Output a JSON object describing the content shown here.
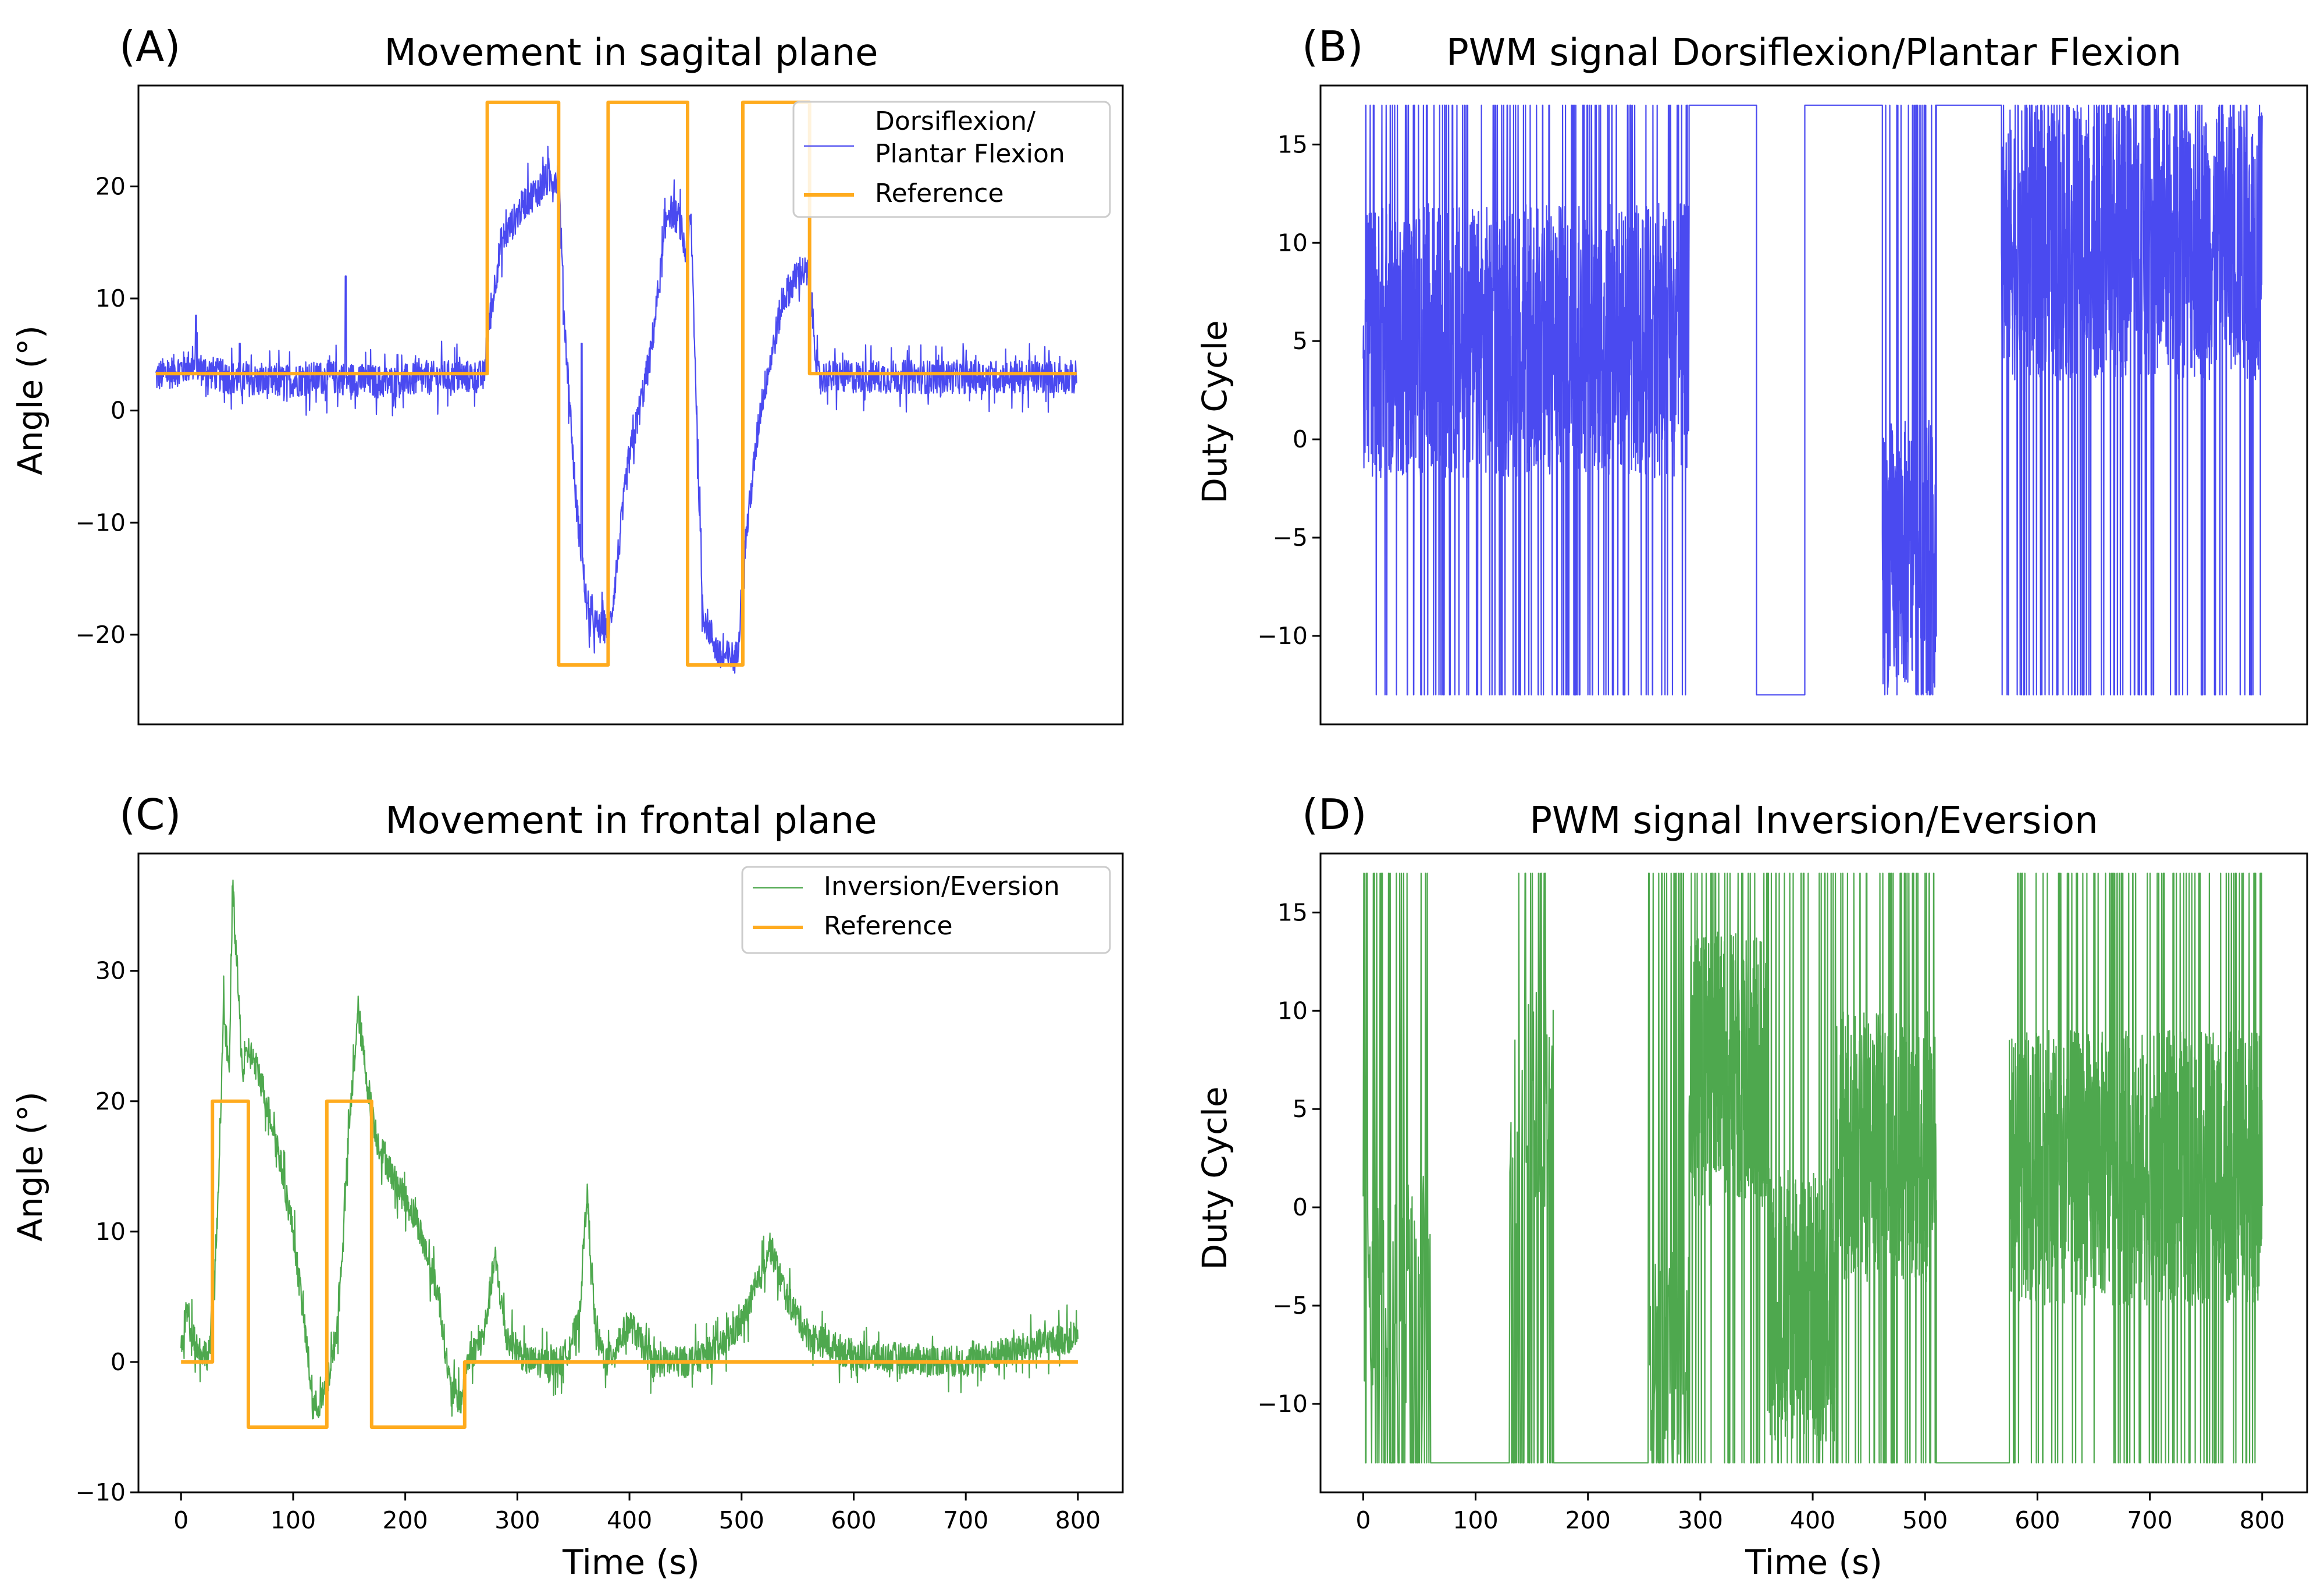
{
  "colors": {
    "blue": "#4a4af0",
    "orange": "#ffab1e",
    "green": "#4ea84e"
  },
  "chart_data": [
    {
      "id": "A",
      "type": "line",
      "panel_label": "(A)",
      "title": "Movement in sagital plane",
      "xlabel": "",
      "ylabel": "Angle (°)",
      "xlim": [
        -15,
        840
      ],
      "ylim": [
        -28,
        29
      ],
      "xticks": [],
      "yticks": [
        -20,
        -10,
        0,
        10,
        20
      ],
      "legend_position": "top-right",
      "series": [
        {
          "name": "Dorsiflexion/\nPlantar Flexion",
          "legend_lines": [
            "Dorsiflexion/",
            "Plantar Flexion"
          ],
          "color": "#4a4af0",
          "lw": 2.2,
          "kind": "noisy",
          "x": [
            0,
            30,
            60,
            100,
            150,
            200,
            250,
            285,
            290,
            300,
            320,
            340,
            350,
            355,
            365,
            375,
            385,
            395,
            410,
            430,
            445,
            455,
            460,
            465,
            475,
            490,
            505,
            512,
            525,
            545,
            560,
            568,
            575,
            620,
            700,
            800
          ],
          "y": [
            3,
            4,
            3,
            2.5,
            3,
            2.5,
            3,
            3,
            8,
            15,
            18.5,
            20.5,
            21,
            8,
            -8,
            -18,
            -19.5,
            -19,
            -5,
            5,
            18,
            17,
            14,
            17,
            -18,
            -22,
            -22,
            -12,
            0,
            10,
            12.5,
            12,
            3,
            3,
            3,
            3
          ],
          "noise": 1.5,
          "spikes": [
            [
              35,
              8.5
            ],
            [
              73,
              6
            ],
            [
              165,
              12
            ],
            [
              210,
              5
            ],
            [
              370,
              6
            ]
          ]
        },
        {
          "name": "Reference",
          "color": "#ffab1e",
          "lw": 6,
          "kind": "step",
          "x": [
            0,
            288,
            288,
            350,
            350,
            393,
            393,
            462,
            462,
            510,
            510,
            568,
            568,
            800
          ],
          "y": [
            3.3,
            3.3,
            27.5,
            27.5,
            -22.7,
            -22.7,
            27.5,
            27.5,
            -22.7,
            -22.7,
            27.5,
            27.5,
            3.3,
            3.3
          ]
        }
      ]
    },
    {
      "id": "B",
      "type": "line",
      "panel_label": "(B)",
      "title": "PWM signal Dorsiflexion/Plantar Flexion",
      "xlabel": "",
      "ylabel": "Duty Cycle",
      "xlim": [
        -38,
        840
      ],
      "ylim": [
        -14.5,
        18
      ],
      "xticks": [],
      "yticks": [
        -10,
        -5,
        0,
        5,
        10,
        15
      ],
      "series": [
        {
          "name": "PWM Dorsiflexion/Plantar Flexion",
          "color": "#4a4af0",
          "lw": 2.2,
          "kind": "pwm",
          "segments": [
            [
              0,
              290,
              "noisy",
              5
            ],
            [
              290,
              290,
              "high",
              0
            ],
            [
              290,
              350,
              "high",
              0
            ],
            [
              350,
              393,
              "low",
              0
            ],
            [
              393,
              462,
              "high",
              0
            ],
            [
              462,
              510,
              "noisy",
              -6
            ],
            [
              510,
              568,
              "high",
              0
            ],
            [
              568,
              800,
              "noisy",
              10
            ]
          ],
          "min": -13,
          "max": 17
        }
      ]
    },
    {
      "id": "C",
      "type": "line",
      "panel_label": "(C)",
      "title": "Movement in frontal plane",
      "xlabel": "Time (s)",
      "ylabel": "Angle (°)",
      "xlim": [
        -38,
        840
      ],
      "ylim": [
        -10,
        39
      ],
      "xticks": [
        0,
        100,
        200,
        300,
        400,
        500,
        600,
        700,
        800
      ],
      "yticks": [
        -10,
        0,
        10,
        20,
        30
      ],
      "legend_position": "top-right",
      "series": [
        {
          "name": "Inversion/Eversion",
          "legend_lines": [
            "Inversion/Eversion"
          ],
          "color": "#4ea84e",
          "lw": 2.2,
          "kind": "noisy",
          "x": [
            0,
            5,
            15,
            25,
            32,
            38,
            43,
            46,
            50,
            55,
            60,
            70,
            85,
            100,
            110,
            118,
            125,
            130,
            140,
            150,
            158,
            165,
            175,
            190,
            210,
            230,
            240,
            250,
            255,
            270,
            280,
            290,
            310,
            340,
            355,
            362,
            370,
            380,
            400,
            420,
            450,
            480,
            500,
            515,
            525,
            540,
            560,
            600,
            700,
            800
          ],
          "y": [
            1,
            4,
            1,
            0.5,
            10,
            27,
            22,
            37,
            30,
            22,
            24,
            22,
            17,
            10,
            3,
            -3.5,
            -3,
            -2,
            3,
            18,
            27,
            22,
            17,
            14,
            11,
            5,
            -2,
            -3,
            0,
            2,
            8,
            2,
            0,
            0,
            3,
            13,
            2,
            0,
            3,
            0,
            0,
            1,
            3,
            6,
            9,
            5,
            2,
            0.5,
            0,
            2
          ],
          "noise": 1.2,
          "spikes": []
        },
        {
          "name": "Reference",
          "color": "#ffab1e",
          "lw": 6,
          "kind": "step",
          "x": [
            0,
            28,
            28,
            60,
            60,
            130,
            130,
            170,
            170,
            253,
            253,
            800
          ],
          "y": [
            0,
            0,
            20,
            20,
            -5,
            -5,
            20,
            20,
            -5,
            -5,
            0,
            0
          ]
        }
      ]
    },
    {
      "id": "D",
      "type": "line",
      "panel_label": "(D)",
      "title": "PWM signal Inversion/Eversion",
      "xlabel": "Time (s)",
      "ylabel": "Duty Cycle",
      "xlim": [
        -38,
        840
      ],
      "ylim": [
        -14.5,
        18
      ],
      "xticks": [
        0,
        100,
        200,
        300,
        400,
        500,
        600,
        700,
        800
      ],
      "yticks": [
        -10,
        -5,
        0,
        5,
        10,
        15
      ],
      "series": [
        {
          "name": "PWM Inversion/Eversion",
          "color": "#4ea84e",
          "lw": 2.2,
          "kind": "pwm",
          "segments": [
            [
              0,
              60,
              "sparse",
              -4
            ],
            [
              60,
              130,
              "low",
              0
            ],
            [
              130,
              170,
              "sparse",
              5
            ],
            [
              170,
              253,
              "low",
              0
            ],
            [
              253,
              290,
              "sparse",
              -8
            ],
            [
              290,
              360,
              "noisy",
              7
            ],
            [
              360,
              420,
              "noisy",
              -5
            ],
            [
              420,
              510,
              "noisy",
              3
            ],
            [
              510,
              575,
              "low",
              0
            ],
            [
              575,
              800,
              "noisy",
              2
            ]
          ],
          "min": -13,
          "max": 17
        }
      ]
    }
  ]
}
